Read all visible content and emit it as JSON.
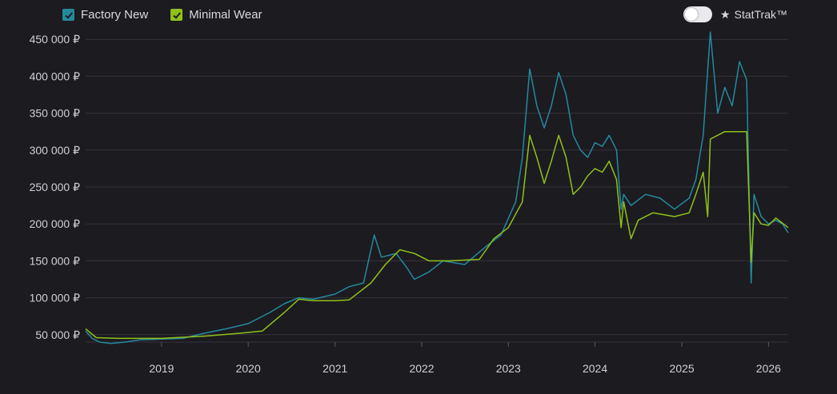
{
  "legend": {
    "series_a": {
      "label": "Factory New",
      "color": "#25899e"
    },
    "series_b": {
      "label": "Minimal Wear",
      "color": "#8fc11a"
    }
  },
  "toggle": {
    "label": "StatTrak™",
    "star": "★",
    "state": "off"
  },
  "chart_data": {
    "type": "line",
    "ylim": [
      40000,
      460000
    ],
    "xlim": [
      "2018-02-15",
      "2026-03-25"
    ],
    "y_ticks": [
      {
        "value": 50000,
        "label": "50 000 ₽"
      },
      {
        "value": 100000,
        "label": "100 000 ₽"
      },
      {
        "value": 150000,
        "label": "150 000 ₽"
      },
      {
        "value": 200000,
        "label": "200 000 ₽"
      },
      {
        "value": 250000,
        "label": "250 000 ₽"
      },
      {
        "value": 300000,
        "label": "300 000 ₽"
      },
      {
        "value": 350000,
        "label": "350 000 ₽"
      },
      {
        "value": 400000,
        "label": "400 000 ₽"
      },
      {
        "value": 450000,
        "label": "450 000 ₽"
      }
    ],
    "x_ticks": [
      "2019",
      "2020",
      "2021",
      "2022",
      "2023",
      "2024",
      "2025",
      "2026"
    ],
    "series": [
      {
        "name": "Factory New",
        "color": "#25899e",
        "points": [
          [
            "2018-02-15",
            55000
          ],
          [
            "2018-03-15",
            45000
          ],
          [
            "2018-04-15",
            40000
          ],
          [
            "2018-06-01",
            38000
          ],
          [
            "2018-08-01",
            40000
          ],
          [
            "2018-10-01",
            43000
          ],
          [
            "2019-01-01",
            44000
          ],
          [
            "2019-04-01",
            45000
          ],
          [
            "2019-07-01",
            52000
          ],
          [
            "2019-10-01",
            58000
          ],
          [
            "2020-01-01",
            65000
          ],
          [
            "2020-04-01",
            80000
          ],
          [
            "2020-06-01",
            92000
          ],
          [
            "2020-08-01",
            100000
          ],
          [
            "2020-10-01",
            98000
          ],
          [
            "2021-01-01",
            105000
          ],
          [
            "2021-03-01",
            115000
          ],
          [
            "2021-05-01",
            120000
          ],
          [
            "2021-06-15",
            185000
          ],
          [
            "2021-07-15",
            155000
          ],
          [
            "2021-09-15",
            160000
          ],
          [
            "2021-11-01",
            140000
          ],
          [
            "2021-12-01",
            125000
          ],
          [
            "2022-02-01",
            135000
          ],
          [
            "2022-04-01",
            150000
          ],
          [
            "2022-07-01",
            145000
          ],
          [
            "2022-10-01",
            170000
          ],
          [
            "2022-12-01",
            185000
          ],
          [
            "2023-02-01",
            230000
          ],
          [
            "2023-03-01",
            290000
          ],
          [
            "2023-04-01",
            410000
          ],
          [
            "2023-05-01",
            360000
          ],
          [
            "2023-06-01",
            330000
          ],
          [
            "2023-07-01",
            360000
          ],
          [
            "2023-08-01",
            405000
          ],
          [
            "2023-09-01",
            375000
          ],
          [
            "2023-10-01",
            320000
          ],
          [
            "2023-11-01",
            300000
          ],
          [
            "2023-12-01",
            290000
          ],
          [
            "2024-01-01",
            310000
          ],
          [
            "2024-02-01",
            305000
          ],
          [
            "2024-03-01",
            320000
          ],
          [
            "2024-04-01",
            300000
          ],
          [
            "2024-04-20",
            220000
          ],
          [
            "2024-05-01",
            240000
          ],
          [
            "2024-06-01",
            225000
          ],
          [
            "2024-08-01",
            240000
          ],
          [
            "2024-10-01",
            235000
          ],
          [
            "2024-12-01",
            220000
          ],
          [
            "2025-02-01",
            235000
          ],
          [
            "2025-03-01",
            260000
          ],
          [
            "2025-04-01",
            320000
          ],
          [
            "2025-05-01",
            460000
          ],
          [
            "2025-06-01",
            350000
          ],
          [
            "2025-07-01",
            385000
          ],
          [
            "2025-08-01",
            360000
          ],
          [
            "2025-09-01",
            420000
          ],
          [
            "2025-10-01",
            395000
          ],
          [
            "2025-10-20",
            120000
          ],
          [
            "2025-11-01",
            240000
          ],
          [
            "2025-12-01",
            210000
          ],
          [
            "2026-01-01",
            200000
          ],
          [
            "2026-02-01",
            205000
          ],
          [
            "2026-03-01",
            200000
          ],
          [
            "2026-03-25",
            188000
          ]
        ]
      },
      {
        "name": "Minimal Wear",
        "color": "#8fc11a",
        "points": [
          [
            "2018-02-15",
            58000
          ],
          [
            "2018-04-01",
            46000
          ],
          [
            "2018-07-01",
            45000
          ],
          [
            "2019-01-01",
            45000
          ],
          [
            "2019-07-01",
            48000
          ],
          [
            "2019-12-01",
            52000
          ],
          [
            "2020-03-01",
            55000
          ],
          [
            "2020-06-01",
            80000
          ],
          [
            "2020-08-01",
            98000
          ],
          [
            "2020-10-01",
            96000
          ],
          [
            "2021-01-01",
            96000
          ],
          [
            "2021-03-01",
            97000
          ],
          [
            "2021-06-01",
            120000
          ],
          [
            "2021-08-01",
            145000
          ],
          [
            "2021-10-01",
            165000
          ],
          [
            "2021-12-01",
            160000
          ],
          [
            "2022-02-01",
            150000
          ],
          [
            "2022-05-01",
            150000
          ],
          [
            "2022-09-01",
            152000
          ],
          [
            "2022-11-01",
            180000
          ],
          [
            "2023-01-01",
            195000
          ],
          [
            "2023-03-01",
            230000
          ],
          [
            "2023-04-01",
            320000
          ],
          [
            "2023-05-01",
            290000
          ],
          [
            "2023-06-01",
            255000
          ],
          [
            "2023-07-01",
            285000
          ],
          [
            "2023-08-01",
            320000
          ],
          [
            "2023-09-01",
            290000
          ],
          [
            "2023-10-01",
            240000
          ],
          [
            "2023-11-01",
            250000
          ],
          [
            "2023-12-01",
            265000
          ],
          [
            "2024-01-01",
            275000
          ],
          [
            "2024-02-01",
            270000
          ],
          [
            "2024-03-01",
            285000
          ],
          [
            "2024-04-01",
            260000
          ],
          [
            "2024-04-20",
            195000
          ],
          [
            "2024-05-01",
            230000
          ],
          [
            "2024-06-01",
            180000
          ],
          [
            "2024-07-01",
            205000
          ],
          [
            "2024-09-01",
            215000
          ],
          [
            "2024-12-01",
            210000
          ],
          [
            "2025-02-01",
            215000
          ],
          [
            "2025-03-01",
            240000
          ],
          [
            "2025-04-01",
            270000
          ],
          [
            "2025-04-20",
            210000
          ],
          [
            "2025-05-01",
            315000
          ],
          [
            "2025-07-01",
            325000
          ],
          [
            "2025-10-01",
            325000
          ],
          [
            "2025-10-20",
            148000
          ],
          [
            "2025-11-01",
            215000
          ],
          [
            "2025-12-01",
            200000
          ],
          [
            "2026-01-01",
            198000
          ],
          [
            "2026-02-01",
            208000
          ],
          [
            "2026-03-25",
            195000
          ]
        ]
      }
    ]
  }
}
